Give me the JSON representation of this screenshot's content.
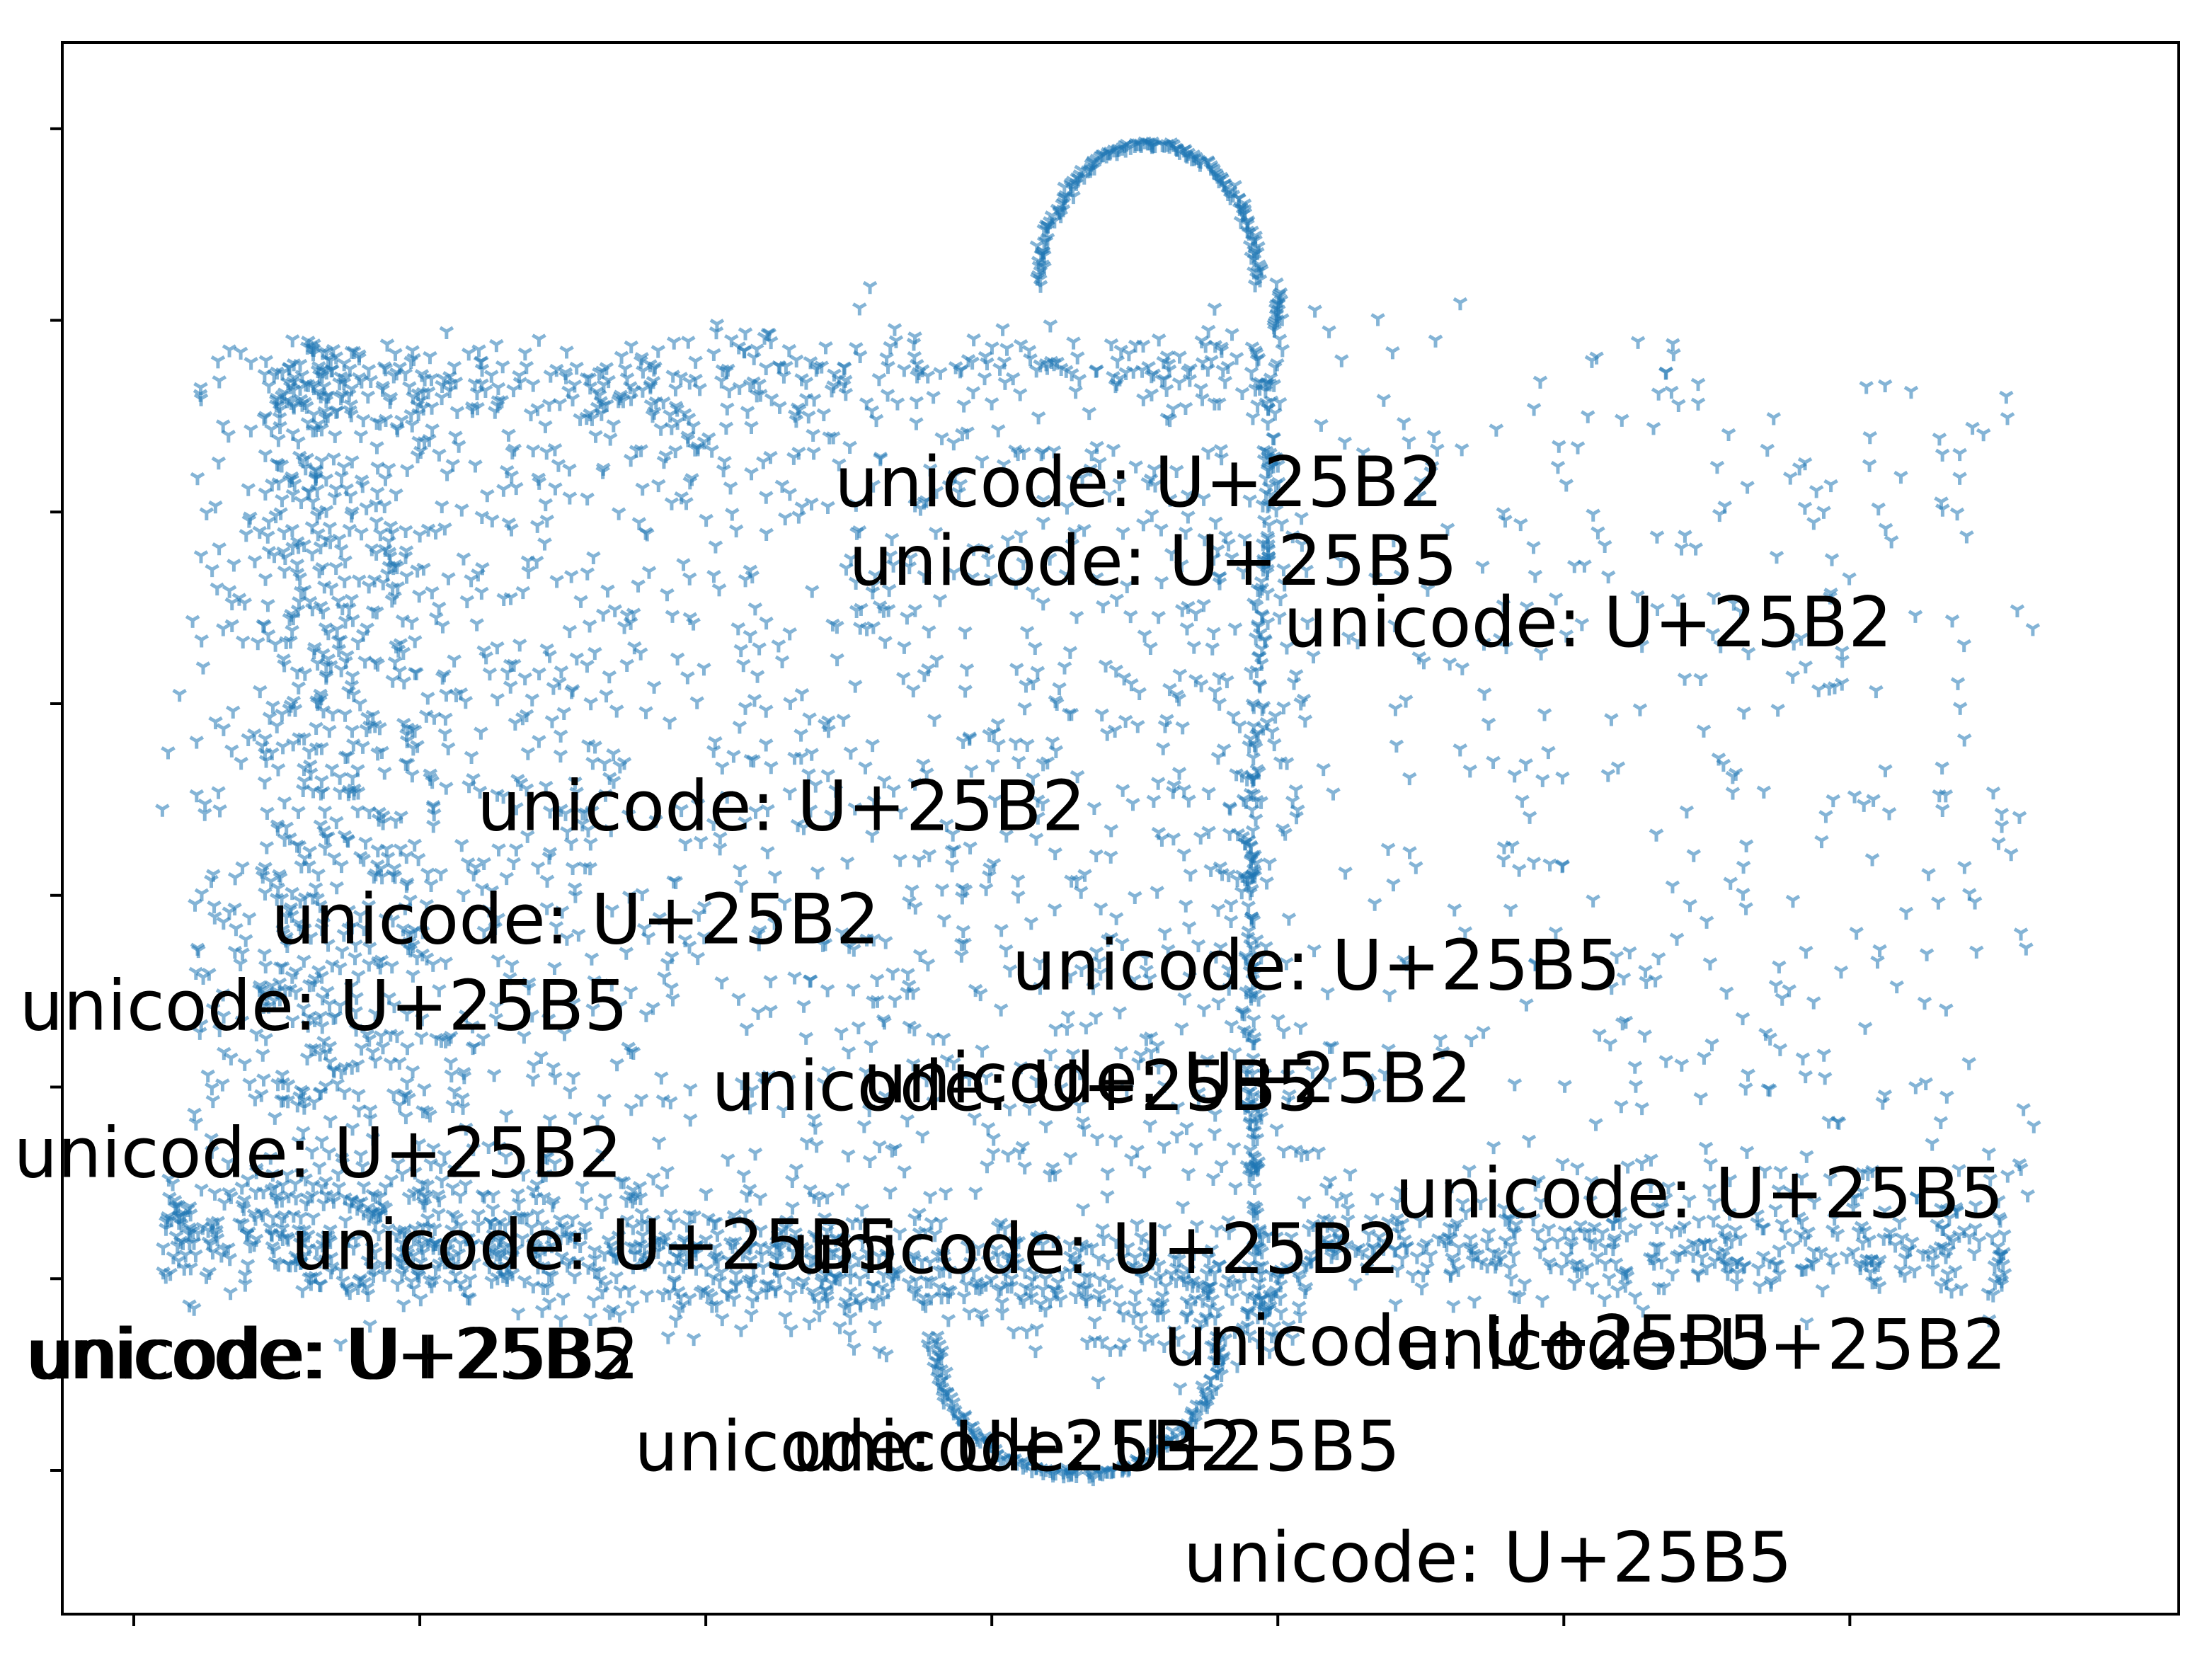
{
  "chart_data": {
    "type": "scatter",
    "title": "",
    "xlabel": "",
    "ylabel": "",
    "xlim": [
      -0.25,
      7.15
    ],
    "ylim": [
      0.25,
      8.45
    ],
    "xticks": [
      0,
      1,
      2,
      3,
      4,
      5,
      6
    ],
    "yticks": [
      1,
      2,
      3,
      4,
      5,
      6,
      7,
      8
    ],
    "tick_labels_visible": false,
    "grid": false,
    "legend": "none",
    "series": [
      {
        "name": "points",
        "marker": "tri_down",
        "color": "#1f77b4",
        "alpha": 0.55,
        "approx_point_count": 3500,
        "description_clusters": [
          {
            "name": "left-block",
            "x_range": [
              0.2,
              4.1
            ],
            "y_range": [
              2.3,
              7.0
            ]
          },
          {
            "name": "bottom-band",
            "x_range": [
              0.1,
              4.1
            ],
            "y_range": [
              1.7,
              2.6
            ]
          },
          {
            "name": "right-sparse",
            "x_range": [
              4.1,
              6.6
            ],
            "y_range": [
              2.0,
              7.1
            ]
          },
          {
            "name": "right-bottom-band",
            "x_range": [
              4.1,
              6.6
            ],
            "y_range": [
              1.8,
              2.4
            ]
          },
          {
            "name": "top-loop",
            "x_range": [
              3.2,
              4.0
            ],
            "y_range": [
              5.8,
              7.95
            ]
          },
          {
            "name": "bottom-loop",
            "x_range": [
              2.8,
              3.8
            ],
            "y_range": [
              0.9,
              1.8
            ]
          },
          {
            "name": "left-edge-dashes",
            "x_range": [
              0.05,
              0.5
            ],
            "y_range": [
              4.0,
              6.8
            ]
          }
        ]
      }
    ],
    "annotations": [
      {
        "text": "unicode: U+25B2",
        "x": 2.45,
        "y": 6.03
      },
      {
        "text": "unicode: U+25B5",
        "x": 2.5,
        "y": 5.62
      },
      {
        "text": "unicode: U+25B2",
        "x": 4.02,
        "y": 5.3
      },
      {
        "text": "unicode: U+25B2",
        "x": 1.2,
        "y": 4.34
      },
      {
        "text": "unicode: U+25B2",
        "x": 0.48,
        "y": 3.75
      },
      {
        "text": "unicode: U+25B5",
        "x": 3.07,
        "y": 3.51
      },
      {
        "text": "unicode: U+25B5",
        "x": -0.4,
        "y": 3.3
      },
      {
        "text": "unicode: U+25B2",
        "x": 2.55,
        "y": 2.92
      },
      {
        "text": "unicode: U+25B5",
        "x": 2.02,
        "y": 2.88
      },
      {
        "text": "unicode: U+25B2",
        "x": -0.42,
        "y": 2.53
      },
      {
        "text": "unicode: U+25B5",
        "x": 4.41,
        "y": 2.32
      },
      {
        "text": "unicode: U+25B5",
        "x": 0.55,
        "y": 2.05
      },
      {
        "text": "unicode: U+25B2",
        "x": 2.3,
        "y": 2.03
      },
      {
        "text": "unicode: U+25B2",
        "x": 4.42,
        "y": 1.53
      },
      {
        "text": "unicode: U+25B5",
        "x": 3.6,
        "y": 1.55
      },
      {
        "text": "unicode: U+25B5",
        "x": -0.38,
        "y": 1.48
      },
      {
        "text": "unicode: U+25B2",
        "x": -0.36,
        "y": 1.48
      },
      {
        "text": "unicode: U+25B2",
        "x": 1.75,
        "y": 1.0
      },
      {
        "text": "unicode: U+25B5",
        "x": 2.3,
        "y": 1.0
      },
      {
        "text": "unicode: U+25B5",
        "x": 3.67,
        "y": 0.42
      }
    ]
  }
}
